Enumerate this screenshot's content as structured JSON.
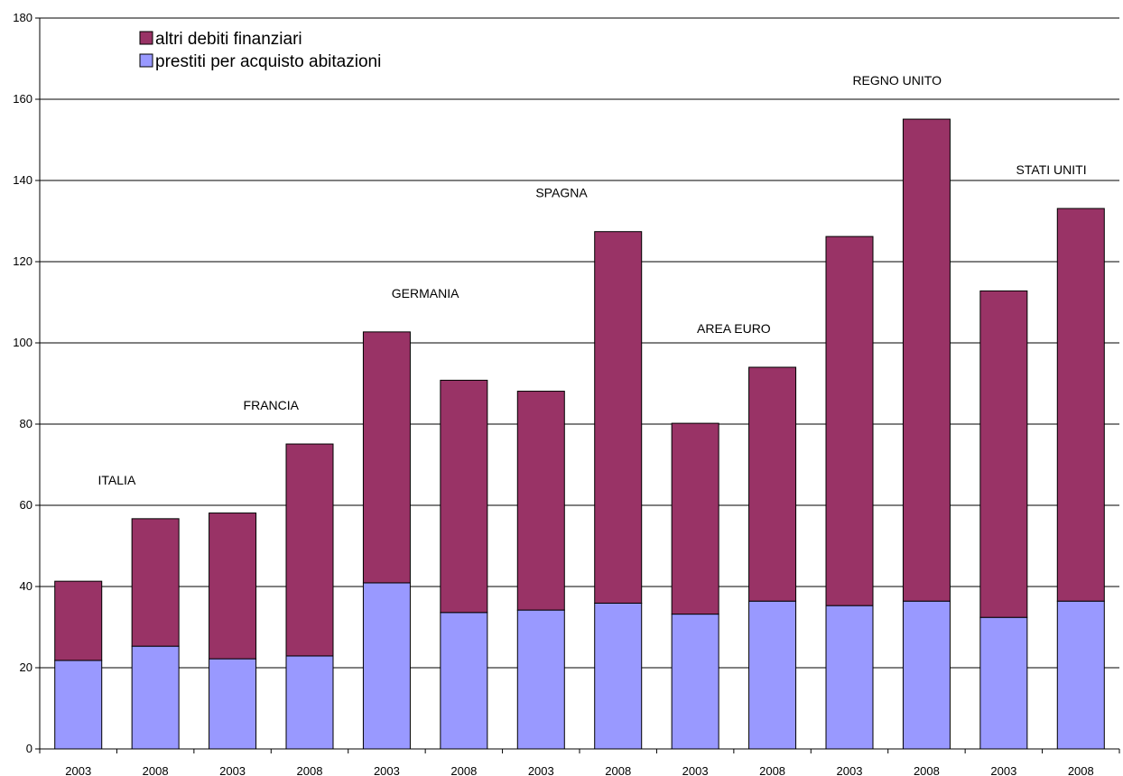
{
  "chart_data": {
    "type": "bar",
    "stacked": true,
    "categories": [
      "2003",
      "2008",
      "2003",
      "2008",
      "2003",
      "2008",
      "2003",
      "2008",
      "2003",
      "2008",
      "2003",
      "2008",
      "2003",
      "2008"
    ],
    "series": [
      {
        "name": "prestiti per acquisto abitazioni",
        "color": "#9999ff",
        "values": [
          21.8,
          25.3,
          22.2,
          22.9,
          40.9,
          33.6,
          34.2,
          35.9,
          33.2,
          36.4,
          35.3,
          36.4,
          32.4,
          36.4
        ]
      },
      {
        "name": "altri debiti finanziari",
        "color": "#993366",
        "values": [
          19.5,
          31.4,
          35.9,
          52.2,
          61.8,
          57.2,
          53.9,
          91.5,
          47.0,
          57.6,
          90.9,
          118.7,
          80.4,
          96.7
        ]
      }
    ],
    "groups": [
      {
        "label": "ITALIA",
        "bars": [
          0,
          1
        ]
      },
      {
        "label": "FRANCIA",
        "bars": [
          2,
          3
        ]
      },
      {
        "label": "GERMANIA",
        "bars": [
          4,
          5
        ]
      },
      {
        "label": "SPAGNA",
        "bars": [
          6,
          7
        ]
      },
      {
        "label": "AREA EURO",
        "bars": [
          8,
          9
        ]
      },
      {
        "label": "REGNO UNITO",
        "bars": [
          10,
          11
        ]
      },
      {
        "label": "STATI UNITI",
        "bars": [
          12,
          13
        ]
      }
    ],
    "yticks": [
      0,
      20,
      40,
      60,
      80,
      100,
      120,
      140,
      160,
      180
    ],
    "ylim": [
      0,
      180
    ],
    "grid": true,
    "legend_position": "top-left",
    "legend_order": [
      "altri debiti finanziari",
      "prestiti per acquisto abitazioni"
    ],
    "title": "",
    "xlabel": "",
    "ylabel": ""
  }
}
